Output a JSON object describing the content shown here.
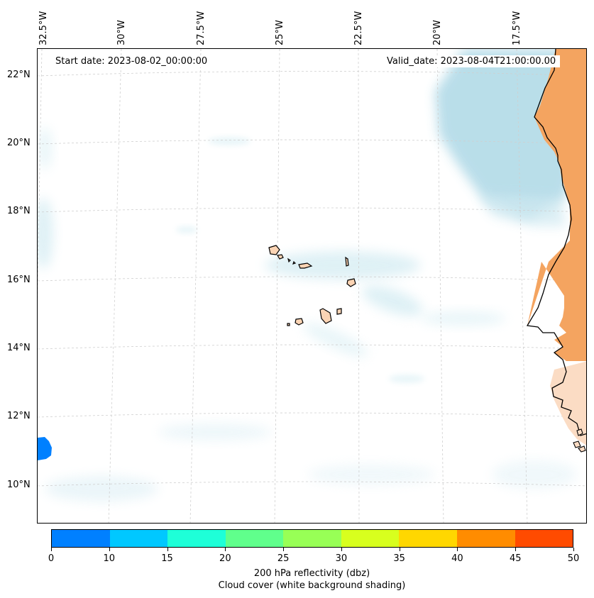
{
  "map": {
    "start_date": "Start date: 2023-08-02_00:00:00",
    "valid_date": "Valid_date: 2023-08-04T21:00:00.00",
    "lon_labels": [
      "32.5°W",
      "30°W",
      "27.5°W",
      "25°W",
      "22.5°W",
      "20°W",
      "17.5°W"
    ],
    "lat_labels": [
      "22°N",
      "20°N",
      "18°N",
      "16°N",
      "14°N",
      "12°N",
      "10°N"
    ],
    "land_color": "#f4a460",
    "cloud_color": "#add8e6"
  },
  "colorbar": {
    "ticks": [
      "0",
      "10",
      "15",
      "20",
      "25",
      "30",
      "35",
      "40",
      "45",
      "50"
    ],
    "colors": [
      "#0080ff",
      "#00c8ff",
      "#1effd8",
      "#60ff8c",
      "#98ff56",
      "#d8ff1e",
      "#ffd700",
      "#ff8c00",
      "#ff4b00"
    ],
    "label_line1": "200 hPa reflectivity (dbz)",
    "label_line2": "Cloud cover (white background shading)"
  }
}
